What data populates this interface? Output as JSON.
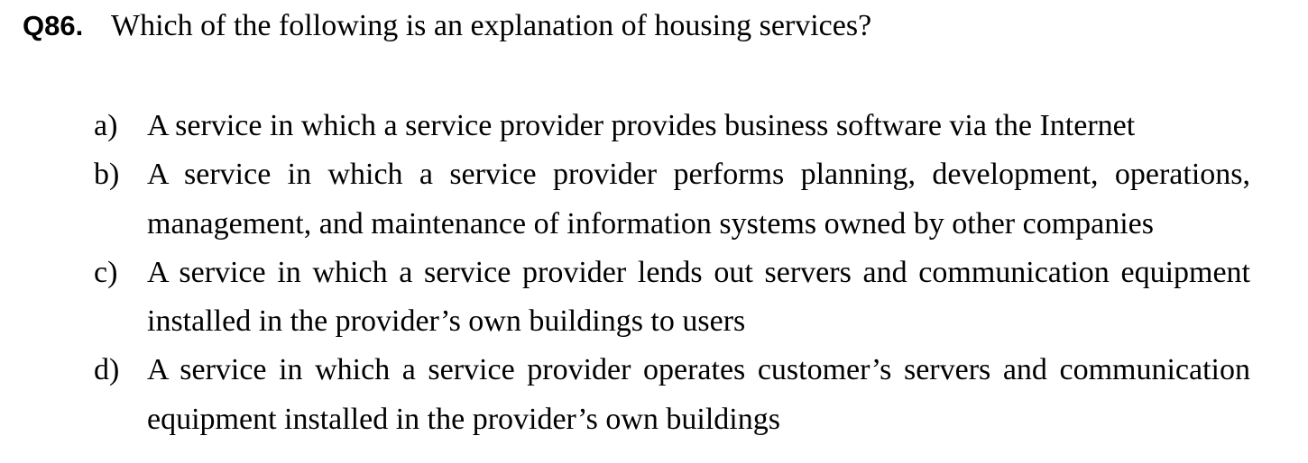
{
  "question": {
    "number": "Q86.",
    "text": "Which of the following is an explanation of housing services?"
  },
  "options": [
    {
      "label": "a)",
      "text": "A service in which a service provider provides business software via the Internet"
    },
    {
      "label": "b)",
      "text": "A service in which a service provider performs planning, development, operations, management, and maintenance of information systems owned by other companies"
    },
    {
      "label": "c)",
      "text": "A service in which a service provider lends out servers and communication equipment installed in the provider’s own buildings to users"
    },
    {
      "label": "d)",
      "text": "A service in which a service provider operates customer’s servers and communication equipment installed in the provider’s own buildings"
    }
  ]
}
